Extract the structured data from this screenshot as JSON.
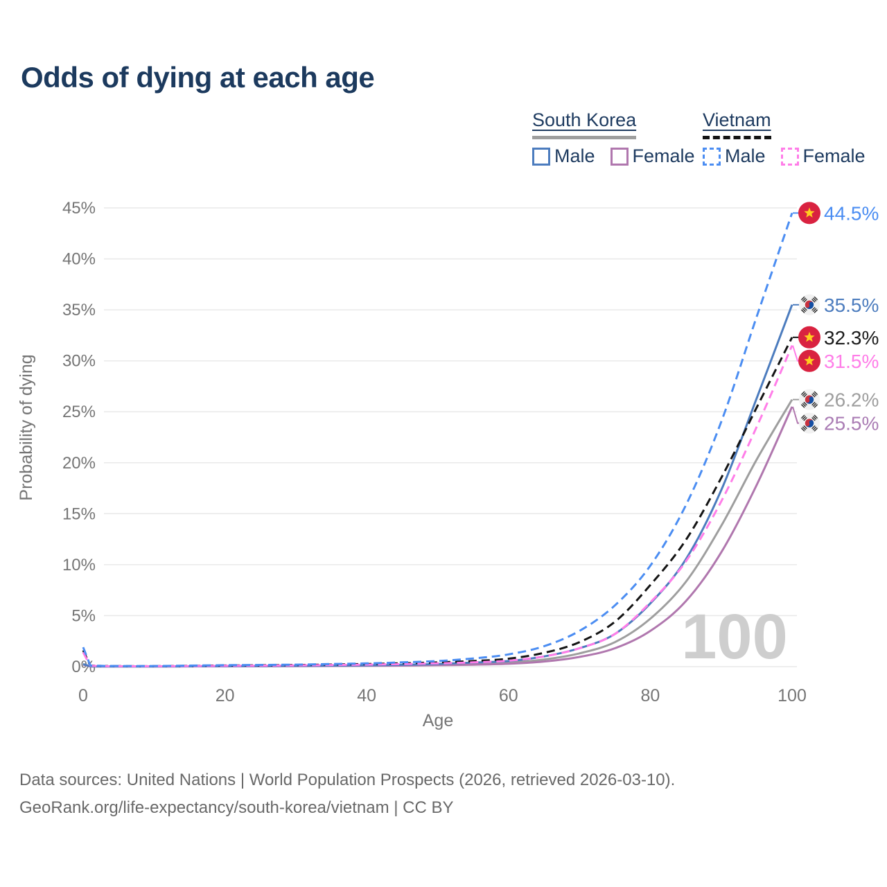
{
  "header": {
    "title": "Odds of dying at each age"
  },
  "legend": {
    "groups": [
      {
        "label": "South Korea",
        "line_color": "#9e9e9e",
        "line_dashed": false,
        "items": [
          {
            "label": "Male",
            "color": "#4c7cbe",
            "dashed": false
          },
          {
            "label": "Female",
            "color": "#b077ae",
            "dashed": false
          }
        ]
      },
      {
        "label": "Vietnam",
        "line_color": "#141414",
        "line_dashed": true,
        "items": [
          {
            "label": "Male",
            "color": "#4b8df2",
            "dashed": true
          },
          {
            "label": "Female",
            "color": "#ff7de8",
            "dashed": true
          }
        ]
      }
    ]
  },
  "chart_data": {
    "type": "line",
    "title": "Odds of dying at each age",
    "xlabel": "Age",
    "ylabel": "Probability of dying",
    "xlim": [
      0,
      100
    ],
    "ylim": [
      0,
      45
    ],
    "grid": "horizontal",
    "legend_position": "top-right",
    "watermark": "100",
    "x_ticks": [
      {
        "value": 0,
        "label": "0"
      },
      {
        "value": 20,
        "label": "20"
      },
      {
        "value": 40,
        "label": "40"
      },
      {
        "value": 60,
        "label": "60"
      },
      {
        "value": 80,
        "label": "80"
      },
      {
        "value": 100,
        "label": "100"
      }
    ],
    "y_ticks": [
      {
        "value": 0,
        "label": "0%"
      },
      {
        "value": 5,
        "label": "5%"
      },
      {
        "value": 10,
        "label": "10%"
      },
      {
        "value": 15,
        "label": "15%"
      },
      {
        "value": 20,
        "label": "20%"
      },
      {
        "value": 25,
        "label": "25%"
      },
      {
        "value": 30,
        "label": "30%"
      },
      {
        "value": 35,
        "label": "35%"
      },
      {
        "value": 40,
        "label": "40%"
      },
      {
        "value": 45,
        "label": "45%"
      }
    ],
    "series": [
      {
        "id": "south-korea-all",
        "country": "South Korea",
        "sex": "all",
        "color": "#9e9e9e",
        "dashed": false,
        "end_label": {
          "text": "26.2%",
          "color": "#9e9e9e",
          "flag": "kr"
        },
        "points": [
          [
            0,
            0.22
          ],
          [
            1,
            0.025
          ],
          [
            3,
            0.018
          ],
          [
            10,
            0.015
          ],
          [
            20,
            0.04
          ],
          [
            30,
            0.06
          ],
          [
            40,
            0.1
          ],
          [
            45,
            0.14
          ],
          [
            50,
            0.19
          ],
          [
            55,
            0.27
          ],
          [
            60,
            0.4
          ],
          [
            65,
            0.7
          ],
          [
            70,
            1.3
          ],
          [
            75,
            2.4
          ],
          [
            80,
            4.7
          ],
          [
            85,
            8.3
          ],
          [
            90,
            13.8
          ],
          [
            95,
            20.3
          ],
          [
            100,
            26.2
          ]
        ]
      },
      {
        "id": "south-korea-female",
        "country": "South Korea",
        "sex": "female",
        "color": "#b077ae",
        "dashed": false,
        "end_label": {
          "text": "25.5%",
          "color": "#aa7cb4",
          "flag": "kr"
        },
        "points": [
          [
            0,
            0.2
          ],
          [
            1,
            0.02
          ],
          [
            3,
            0.015
          ],
          [
            10,
            0.012
          ],
          [
            20,
            0.03
          ],
          [
            30,
            0.045
          ],
          [
            40,
            0.08
          ],
          [
            45,
            0.1
          ],
          [
            50,
            0.14
          ],
          [
            55,
            0.19
          ],
          [
            60,
            0.28
          ],
          [
            65,
            0.5
          ],
          [
            70,
            0.95
          ],
          [
            75,
            1.8
          ],
          [
            80,
            3.5
          ],
          [
            85,
            6.4
          ],
          [
            90,
            11.2
          ],
          [
            95,
            17.8
          ],
          [
            100,
            25.5
          ]
        ]
      },
      {
        "id": "south-korea-male",
        "country": "South Korea",
        "sex": "male",
        "color": "#4c7cbe",
        "dashed": false,
        "end_label": {
          "text": "35.5%",
          "color": "#4c7cbe",
          "flag": "kr"
        },
        "points": [
          [
            0,
            0.25
          ],
          [
            1,
            0.03
          ],
          [
            3,
            0.02
          ],
          [
            10,
            0.02
          ],
          [
            20,
            0.05
          ],
          [
            30,
            0.08
          ],
          [
            40,
            0.13
          ],
          [
            45,
            0.18
          ],
          [
            50,
            0.26
          ],
          [
            55,
            0.4
          ],
          [
            60,
            0.55
          ],
          [
            65,
            1.0
          ],
          [
            70,
            1.8
          ],
          [
            75,
            3.2
          ],
          [
            80,
            6.2
          ],
          [
            85,
            10.5
          ],
          [
            90,
            17.3
          ],
          [
            95,
            26.3
          ],
          [
            100,
            35.5
          ]
        ]
      },
      {
        "id": "vietnam-all",
        "country": "Vietnam",
        "sex": "all",
        "color": "#141414",
        "dashed": true,
        "end_label": {
          "text": "32.3%",
          "color": "#1a1a1a",
          "flag": "vn"
        },
        "points": [
          [
            0,
            1.6
          ],
          [
            1,
            0.1
          ],
          [
            3,
            0.06
          ],
          [
            10,
            0.05
          ],
          [
            20,
            0.11
          ],
          [
            30,
            0.16
          ],
          [
            40,
            0.26
          ],
          [
            45,
            0.33
          ],
          [
            50,
            0.42
          ],
          [
            55,
            0.55
          ],
          [
            60,
            0.78
          ],
          [
            65,
            1.35
          ],
          [
            70,
            2.4
          ],
          [
            75,
            4.4
          ],
          [
            80,
            8.0
          ],
          [
            85,
            12.4
          ],
          [
            90,
            18.5
          ],
          [
            95,
            25.4
          ],
          [
            100,
            32.3
          ]
        ]
      },
      {
        "id": "vietnam-female",
        "country": "Vietnam",
        "sex": "female",
        "color": "#ff7de8",
        "dashed": true,
        "end_label": {
          "text": "31.5%",
          "color": "#ff7de8",
          "flag": "vn"
        },
        "points": [
          [
            0,
            1.4
          ],
          [
            1,
            0.09
          ],
          [
            3,
            0.05
          ],
          [
            10,
            0.04
          ],
          [
            20,
            0.08
          ],
          [
            30,
            0.12
          ],
          [
            40,
            0.2
          ],
          [
            45,
            0.25
          ],
          [
            50,
            0.32
          ],
          [
            55,
            0.42
          ],
          [
            60,
            0.58
          ],
          [
            65,
            1.0
          ],
          [
            70,
            1.8
          ],
          [
            75,
            3.2
          ],
          [
            80,
            6.3
          ],
          [
            85,
            10.3
          ],
          [
            90,
            16.2
          ],
          [
            95,
            23.5
          ],
          [
            100,
            31.5
          ]
        ]
      },
      {
        "id": "vietnam-male",
        "country": "Vietnam",
        "sex": "male",
        "color": "#4b8df2",
        "dashed": true,
        "end_label": {
          "text": "44.5%",
          "color": "#4b8df2",
          "flag": "vn"
        },
        "points": [
          [
            0,
            1.9
          ],
          [
            1,
            0.12
          ],
          [
            3,
            0.07
          ],
          [
            10,
            0.06
          ],
          [
            20,
            0.14
          ],
          [
            30,
            0.2
          ],
          [
            40,
            0.32
          ],
          [
            45,
            0.42
          ],
          [
            50,
            0.55
          ],
          [
            55,
            0.8
          ],
          [
            60,
            1.2
          ],
          [
            65,
            2.0
          ],
          [
            70,
            3.5
          ],
          [
            75,
            6.0
          ],
          [
            80,
            9.9
          ],
          [
            85,
            15.8
          ],
          [
            90,
            24.0
          ],
          [
            95,
            34.3
          ],
          [
            100,
            44.5
          ]
        ]
      }
    ]
  },
  "footer": {
    "line1": "Data sources: United Nations | World Population Prospects (2026, retrieved 2026-03-10).",
    "line2": "GeoRank.org/life-expectancy/south-korea/vietnam | CC BY"
  }
}
